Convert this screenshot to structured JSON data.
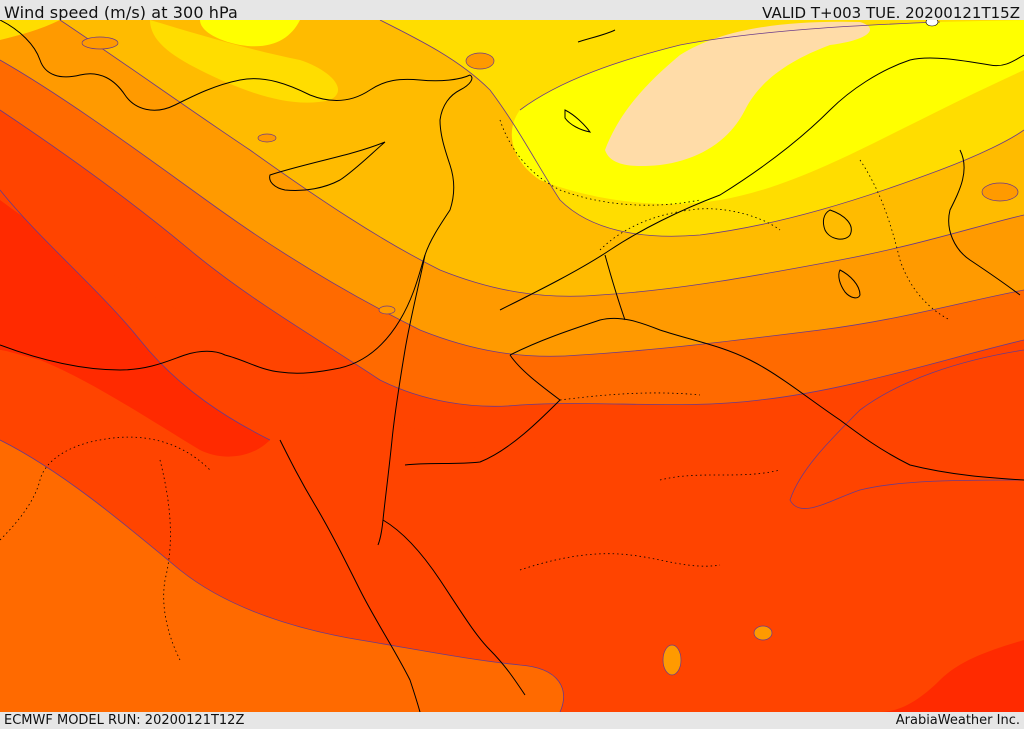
{
  "header": {
    "title": "Wind speed (m/s) at 300 hPa",
    "valid_time": "VALID T+003 TUE. 20200121T15Z"
  },
  "footer": {
    "model_run": "ECMWF MODEL RUN: 20200121T12Z",
    "credit": "ArabiaWeather Inc."
  },
  "map": {
    "variable": "wind speed",
    "level_hpa": 300,
    "units": "m/s",
    "colors": {
      "band_1": "#ffdca8",
      "band_2": "#ffff00",
      "band_3": "#ffdd00",
      "band_4": "#ffbb00",
      "band_5": "#ff9a00",
      "band_6": "#ff6a00",
      "band_7": "#ff4400",
      "band_8": "#ff2a00",
      "contour_line": "#6a3a8a",
      "coastline": "#000000"
    }
  }
}
